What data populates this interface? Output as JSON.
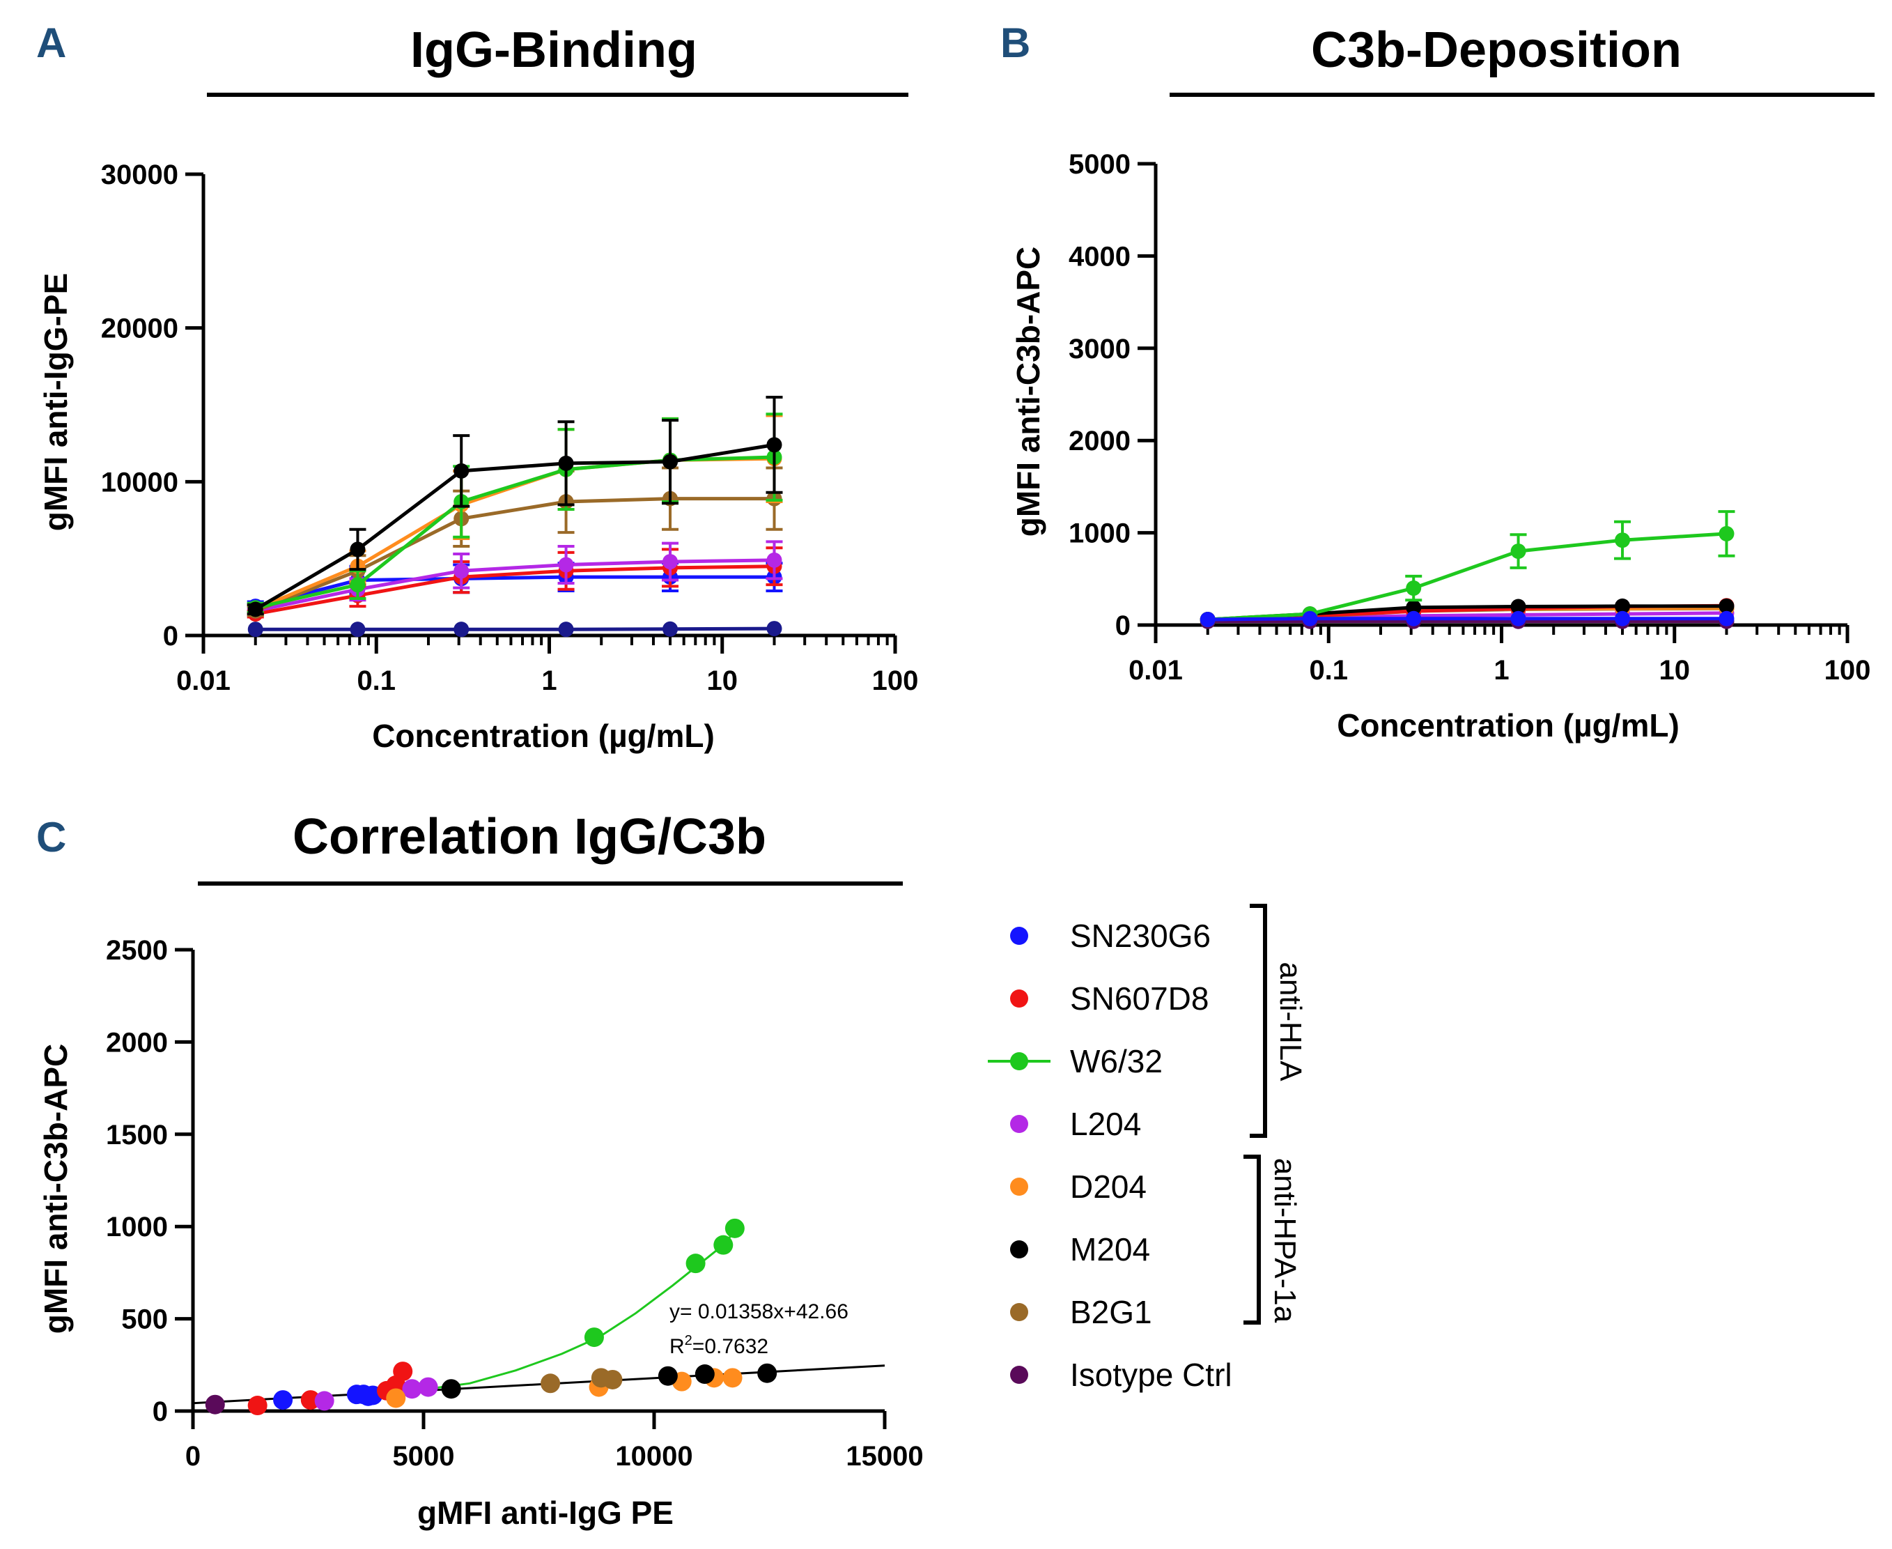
{
  "colors": {
    "SN230G6": "#1414ff",
    "SN607D8": "#f01414",
    "W6/32": "#1ec81e",
    "L204": "#b428e6",
    "D204": "#ff8c1e",
    "M204": "#000000",
    "B2G1": "#9a6a28",
    "Isotype Ctrl": "#5a0a5a",
    "axis": "#000000",
    "panel_letter": "#1f4e79"
  },
  "chart_data": [
    {
      "id": "A",
      "panel_letter": "A",
      "type": "line",
      "title": "IgG-Binding",
      "xlabel": "Concentration (µg/mL)",
      "ylabel": "gMFI anti-IgG-PE",
      "xscale": "log",
      "xlim": [
        0.01,
        100
      ],
      "ylim": [
        0,
        30000
      ],
      "xticks": [
        0.01,
        0.1,
        1,
        10,
        100
      ],
      "xtick_labels": [
        "0.01",
        "0.1",
        "1",
        "10",
        "100"
      ],
      "yticks": [
        0,
        10000,
        20000,
        30000
      ],
      "ytick_labels": [
        "0",
        "10000",
        "20000",
        "30000"
      ],
      "x": [
        0.02,
        0.078,
        0.31,
        1.25,
        5,
        20
      ],
      "series": [
        {
          "name": "Isotype Ctrl",
          "curve_color": "#1a1a8c",
          "values": [
            400,
            400,
            400,
            400,
            420,
            450
          ],
          "err": [
            0,
            0,
            0,
            0,
            0,
            0
          ]
        },
        {
          "name": "SN230G6",
          "values": [
            1900,
            3600,
            3700,
            3800,
            3800,
            3800
          ],
          "err": [
            300,
            900,
            900,
            900,
            900,
            900
          ]
        },
        {
          "name": "SN607D8",
          "values": [
            1400,
            2600,
            3800,
            4200,
            4400,
            4500
          ],
          "err": [
            200,
            700,
            1000,
            1200,
            1200,
            1200
          ]
        },
        {
          "name": "L204",
          "values": [
            1600,
            3000,
            4200,
            4600,
            4800,
            4900
          ],
          "err": [
            200,
            700,
            1100,
            1200,
            1200,
            1200
          ]
        },
        {
          "name": "B2G1",
          "values": [
            1600,
            4200,
            7600,
            8700,
            8900,
            8900
          ],
          "err": [
            300,
            1000,
            1800,
            2000,
            2000,
            2000
          ]
        },
        {
          "name": "D204",
          "values": [
            1700,
            4500,
            8500,
            10800,
            11400,
            11500
          ],
          "err": [
            300,
            1000,
            2200,
            2600,
            2700,
            2800
          ]
        },
        {
          "name": "W6/32",
          "values": [
            1800,
            3300,
            8700,
            10800,
            11400,
            11600
          ],
          "err": [
            300,
            900,
            2300,
            2600,
            2700,
            2800
          ]
        },
        {
          "name": "M204",
          "values": [
            1700,
            5600,
            10700,
            11200,
            11300,
            12400
          ],
          "err": [
            300,
            1300,
            2300,
            2700,
            2700,
            3100
          ]
        }
      ]
    },
    {
      "id": "B",
      "panel_letter": "B",
      "type": "line",
      "title": "C3b-Deposition",
      "xlabel": "Concentration (µg/mL)",
      "ylabel": "gMFI anti-C3b-APC",
      "xscale": "log",
      "xlim": [
        0.01,
        100
      ],
      "ylim": [
        0,
        5000
      ],
      "xticks": [
        0.01,
        0.1,
        1,
        10,
        100
      ],
      "xtick_labels": [
        "0.01",
        "0.1",
        "1",
        "10",
        "100"
      ],
      "yticks": [
        0,
        1000,
        2000,
        3000,
        4000,
        5000
      ],
      "ytick_labels": [
        "0",
        "1000",
        "2000",
        "3000",
        "4000",
        "5000"
      ],
      "x": [
        0.02,
        0.078,
        0.31,
        1.25,
        5,
        20
      ],
      "series": [
        {
          "name": "Isotype Ctrl",
          "values": [
            40,
            40,
            40,
            40,
            40,
            40
          ],
          "err": [
            0,
            0,
            0,
            0,
            0,
            0
          ]
        },
        {
          "name": "L204",
          "values": [
            60,
            80,
            100,
            110,
            120,
            130
          ],
          "err": [
            0,
            0,
            0,
            0,
            0,
            0
          ]
        },
        {
          "name": "B2G1",
          "values": [
            60,
            90,
            150,
            170,
            175,
            180
          ],
          "err": [
            0,
            0,
            0,
            0,
            0,
            0
          ]
        },
        {
          "name": "D204",
          "values": [
            60,
            100,
            160,
            175,
            180,
            185
          ],
          "err": [
            0,
            0,
            0,
            0,
            0,
            0
          ]
        },
        {
          "name": "SN607D8",
          "values": [
            60,
            100,
            150,
            180,
            200,
            210
          ],
          "err": [
            0,
            0,
            0,
            0,
            0,
            0
          ]
        },
        {
          "name": "M204",
          "values": [
            60,
            120,
            190,
            200,
            205,
            205
          ],
          "err": [
            0,
            0,
            0,
            0,
            0,
            0
          ]
        },
        {
          "name": "W6/32",
          "values": [
            60,
            120,
            400,
            800,
            920,
            990
          ],
          "err": [
            0,
            0,
            130,
            180,
            200,
            240
          ]
        },
        {
          "name": "SN230G6",
          "values": [
            60,
            70,
            70,
            70,
            70,
            70
          ],
          "err": [
            0,
            0,
            0,
            0,
            0,
            0
          ]
        }
      ]
    },
    {
      "id": "C",
      "panel_letter": "C",
      "type": "scatter",
      "title": "Correlation IgG/C3b",
      "xlabel": "gMFI anti-IgG PE",
      "ylabel": "gMFI anti-C3b-APC",
      "xlim": [
        0,
        15000
      ],
      "ylim": [
        0,
        2500
      ],
      "xticks": [
        0,
        5000,
        10000,
        15000
      ],
      "xtick_labels": [
        "0",
        "5000",
        "10000",
        "15000"
      ],
      "yticks": [
        0,
        500,
        1000,
        1500,
        2000,
        2500
      ],
      "ytick_labels": [
        "0",
        "500",
        "1000",
        "1500",
        "2000",
        "2500"
      ],
      "fit_line": {
        "slope": 0.01358,
        "intercept": 42.66,
        "label": "y= 0.01358x+42.66",
        "r2_prefix": "R",
        "r2_sup": "2",
        "r2_value": "=0.7632"
      },
      "w632_curve": [
        [
          4800,
          110
        ],
        [
          6000,
          150
        ],
        [
          7000,
          220
        ],
        [
          8000,
          310
        ],
        [
          8800,
          400
        ],
        [
          9600,
          530
        ],
        [
          10400,
          680
        ],
        [
          11000,
          800
        ],
        [
          11500,
          900
        ],
        [
          11800,
          990
        ]
      ],
      "series": [
        {
          "name": "Isotype Ctrl",
          "x": [
            480
          ],
          "y": [
            35
          ]
        },
        {
          "name": "SN230G6",
          "x": [
            1950,
            3550,
            3700,
            3800,
            3900
          ],
          "y": [
            60,
            90,
            90,
            80,
            85
          ]
        },
        {
          "name": "SN607D8",
          "x": [
            1400,
            2550,
            4200,
            4400,
            4550
          ],
          "y": [
            30,
            60,
            110,
            140,
            215
          ]
        },
        {
          "name": "L204",
          "x": [
            2850,
            4750,
            5100
          ],
          "y": [
            55,
            120,
            130
          ]
        },
        {
          "name": "W6/32",
          "x": [
            8700,
            10900,
            11500,
            11750
          ],
          "y": [
            400,
            800,
            900,
            990
          ]
        },
        {
          "name": "D204",
          "x": [
            4400,
            8800,
            10600,
            11300,
            11700
          ],
          "y": [
            70,
            130,
            160,
            180,
            180
          ]
        },
        {
          "name": "M204",
          "x": [
            5600,
            10300,
            11100,
            12450
          ],
          "y": [
            120,
            190,
            200,
            205
          ]
        },
        {
          "name": "B2G1",
          "x": [
            7750,
            8850,
            9100
          ],
          "y": [
            150,
            180,
            170
          ]
        }
      ]
    }
  ],
  "legend": {
    "items": [
      {
        "label": "SN230G6",
        "style": "dot"
      },
      {
        "label": "SN607D8",
        "style": "dot"
      },
      {
        "label": "W6/32",
        "style": "line-dot"
      },
      {
        "label": "L204",
        "style": "dot"
      },
      {
        "label": "D204",
        "style": "dot"
      },
      {
        "label": "M204",
        "style": "dot"
      },
      {
        "label": "B2G1",
        "style": "dot"
      },
      {
        "label": "Isotype Ctrl",
        "style": "dot"
      }
    ],
    "groups": [
      {
        "label": "anti-HLA"
      },
      {
        "label": "anti-HPA-1a"
      }
    ]
  }
}
